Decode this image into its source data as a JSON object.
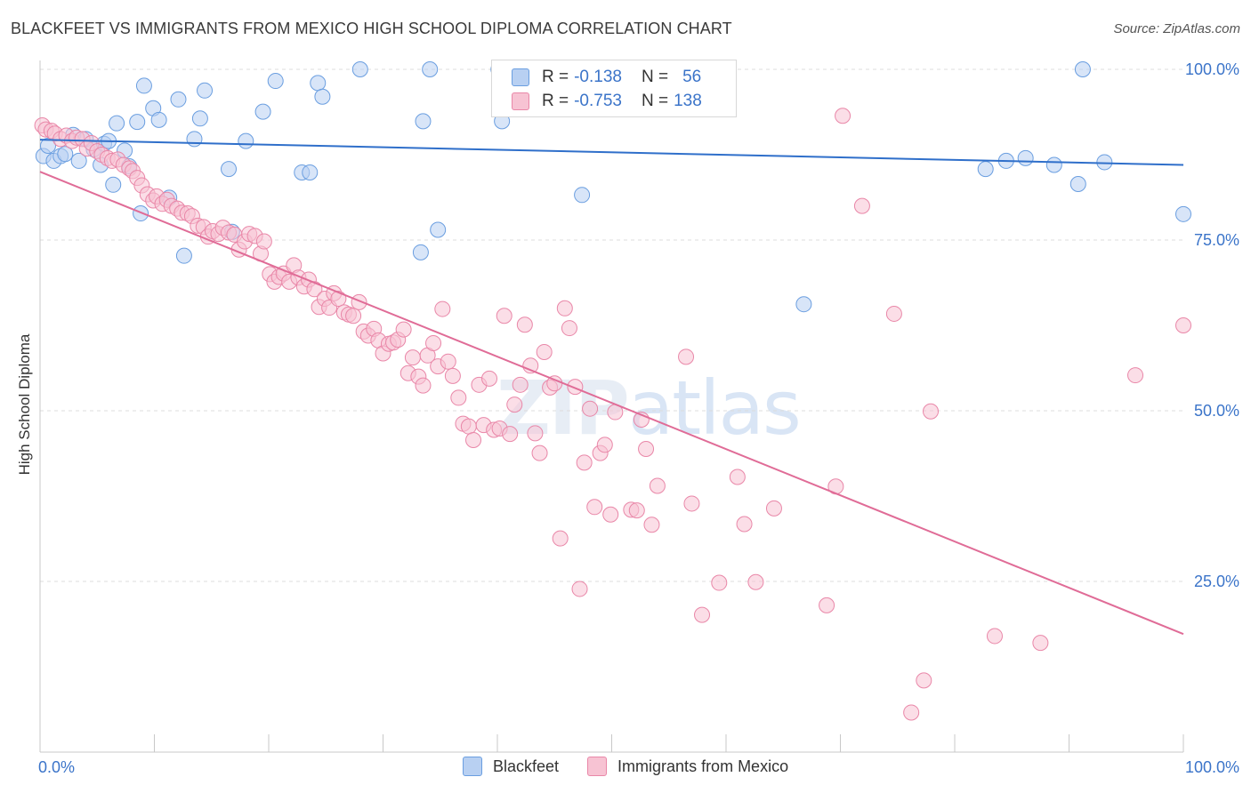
{
  "header": {
    "title": "BLACKFEET VS IMMIGRANTS FROM MEXICO HIGH SCHOOL DIPLOMA CORRELATION CHART",
    "source": "Source: ZipAtlas.com"
  },
  "watermark": {
    "zip": "ZIP",
    "atlas": "atlas"
  },
  "legend": {
    "rows": [
      {
        "r_label": "R =",
        "r_value": "-0.138",
        "n_label": "N =",
        "n_value": "56",
        "fill": "#b8d0f2",
        "stroke": "#6a9ee0"
      },
      {
        "r_label": "R =",
        "r_value": "-0.753",
        "n_label": "N =",
        "n_value": "138",
        "fill": "#f7c3d3",
        "stroke": "#e987a8"
      }
    ]
  },
  "bottom_legend": {
    "items": [
      {
        "label": "Blackfeet",
        "fill": "#b8d0f2",
        "stroke": "#6a9ee0"
      },
      {
        "label": "Immigrants from Mexico",
        "fill": "#f7c3d3",
        "stroke": "#e987a8"
      }
    ]
  },
  "chart_data": {
    "type": "scatter",
    "title": "BLACKFEET VS IMMIGRANTS FROM MEXICO HIGH SCHOOL DIPLOMA CORRELATION CHART",
    "xlabel": "",
    "ylabel": "High School Diploma",
    "xlim": [
      0,
      100
    ],
    "ylim": [
      0,
      100
    ],
    "x_tick_labels": [
      "0.0%",
      "100.0%"
    ],
    "y_ticks": [
      25,
      50,
      75,
      100
    ],
    "y_tick_labels": [
      "25.0%",
      "50.0%",
      "75.0%",
      "100.0%"
    ],
    "grid": true,
    "series": [
      {
        "name": "Blackfeet",
        "color": "#6a9ee0",
        "fill": "#b8d0f2",
        "line_color": "#2f6fca",
        "trend": [
          [
            0,
            89.7
          ],
          [
            100,
            86.0
          ]
        ],
        "points": [
          [
            0.3,
            87.3
          ],
          [
            0.7,
            88.8
          ],
          [
            1.2,
            86.6
          ],
          [
            1.8,
            87.3
          ],
          [
            2.2,
            87.6
          ],
          [
            2.9,
            90.4
          ],
          [
            3.4,
            86.6
          ],
          [
            4.0,
            89.8
          ],
          [
            4.7,
            88.3
          ],
          [
            5.3,
            86.0
          ],
          [
            5.6,
            89.1
          ],
          [
            6.0,
            89.5
          ],
          [
            6.4,
            83.1
          ],
          [
            6.7,
            92.1
          ],
          [
            7.4,
            88.1
          ],
          [
            7.8,
            85.8
          ],
          [
            8.5,
            92.3
          ],
          [
            8.8,
            78.9
          ],
          [
            9.1,
            97.6
          ],
          [
            9.9,
            94.3
          ],
          [
            10.4,
            92.6
          ],
          [
            11.3,
            81.2
          ],
          [
            12.1,
            95.6
          ],
          [
            12.6,
            72.7
          ],
          [
            13.5,
            89.8
          ],
          [
            14.0,
            92.8
          ],
          [
            14.4,
            96.9
          ],
          [
            16.5,
            85.4
          ],
          [
            16.8,
            76.2
          ],
          [
            18.0,
            89.5
          ],
          [
            19.5,
            93.8
          ],
          [
            20.6,
            98.3
          ],
          [
            22.9,
            84.9
          ],
          [
            23.6,
            84.9
          ],
          [
            24.3,
            98.0
          ],
          [
            24.7,
            96.0
          ],
          [
            28.0,
            100.0
          ],
          [
            33.3,
            73.2
          ],
          [
            33.5,
            92.4
          ],
          [
            34.1,
            100.0
          ],
          [
            34.8,
            76.5
          ],
          [
            40.1,
            100.0
          ],
          [
            40.4,
            92.4
          ],
          [
            46.2,
            100.0
          ],
          [
            47.1,
            94.6
          ],
          [
            47.2,
            100.0
          ],
          [
            47.4,
            81.6
          ],
          [
            66.8,
            65.6
          ],
          [
            82.7,
            85.4
          ],
          [
            84.5,
            86.6
          ],
          [
            86.2,
            87.0
          ],
          [
            88.7,
            86.0
          ],
          [
            90.8,
            83.2
          ],
          [
            91.2,
            100.0
          ],
          [
            93.1,
            86.4
          ],
          [
            100.0,
            78.8
          ]
        ]
      },
      {
        "name": "Immigrants from Mexico",
        "color": "#e987a8",
        "fill": "#f7c3d3",
        "line_color": "#e06c97",
        "trend": [
          [
            0,
            85.0
          ],
          [
            100,
            17.3
          ]
        ],
        "points": [
          [
            0.2,
            91.8
          ],
          [
            0.5,
            91.2
          ],
          [
            1.0,
            91.0
          ],
          [
            1.3,
            90.6
          ],
          [
            1.8,
            89.8
          ],
          [
            2.3,
            90.3
          ],
          [
            2.8,
            89.5
          ],
          [
            3.2,
            90.0
          ],
          [
            3.7,
            89.8
          ],
          [
            4.1,
            88.4
          ],
          [
            4.5,
            89.2
          ],
          [
            5.0,
            88.0
          ],
          [
            5.4,
            87.5
          ],
          [
            5.9,
            87.0
          ],
          [
            6.3,
            86.6
          ],
          [
            6.8,
            86.8
          ],
          [
            7.3,
            86.0
          ],
          [
            7.8,
            85.5
          ],
          [
            8.1,
            85.1
          ],
          [
            8.5,
            84.1
          ],
          [
            8.9,
            83.0
          ],
          [
            9.4,
            81.7
          ],
          [
            9.9,
            80.8
          ],
          [
            10.2,
            81.4
          ],
          [
            10.7,
            80.3
          ],
          [
            11.1,
            80.9
          ],
          [
            11.5,
            80.0
          ],
          [
            12.0,
            79.6
          ],
          [
            12.4,
            79.0
          ],
          [
            12.9,
            78.9
          ],
          [
            13.3,
            78.5
          ],
          [
            13.8,
            77.1
          ],
          [
            14.3,
            76.9
          ],
          [
            14.7,
            75.5
          ],
          [
            15.1,
            76.3
          ],
          [
            15.6,
            75.9
          ],
          [
            16.0,
            76.8
          ],
          [
            16.5,
            76.1
          ],
          [
            17.0,
            75.8
          ],
          [
            17.4,
            73.6
          ],
          [
            17.9,
            74.8
          ],
          [
            18.3,
            75.9
          ],
          [
            18.8,
            75.6
          ],
          [
            19.3,
            73.0
          ],
          [
            19.6,
            74.8
          ],
          [
            20.1,
            70.0
          ],
          [
            20.5,
            68.9
          ],
          [
            20.9,
            69.6
          ],
          [
            21.3,
            70.1
          ],
          [
            21.8,
            68.9
          ],
          [
            22.2,
            71.3
          ],
          [
            22.6,
            69.5
          ],
          [
            23.1,
            68.2
          ],
          [
            23.5,
            69.2
          ],
          [
            24.0,
            67.8
          ],
          [
            24.4,
            65.2
          ],
          [
            24.9,
            66.4
          ],
          [
            25.3,
            65.1
          ],
          [
            25.7,
            67.2
          ],
          [
            26.1,
            66.4
          ],
          [
            26.6,
            64.4
          ],
          [
            27.0,
            64.1
          ],
          [
            27.4,
            63.9
          ],
          [
            27.9,
            65.9
          ],
          [
            28.3,
            61.6
          ],
          [
            28.7,
            61.0
          ],
          [
            29.2,
            62.0
          ],
          [
            29.6,
            60.3
          ],
          [
            30.0,
            58.4
          ],
          [
            30.5,
            59.8
          ],
          [
            30.9,
            60.0
          ],
          [
            31.3,
            60.4
          ],
          [
            31.8,
            61.9
          ],
          [
            32.2,
            55.5
          ],
          [
            32.6,
            57.8
          ],
          [
            33.1,
            55.0
          ],
          [
            33.5,
            53.7
          ],
          [
            33.9,
            58.1
          ],
          [
            34.4,
            59.9
          ],
          [
            34.8,
            56.5
          ],
          [
            35.2,
            64.9
          ],
          [
            35.7,
            57.2
          ],
          [
            36.1,
            55.1
          ],
          [
            36.6,
            51.9
          ],
          [
            37.0,
            48.1
          ],
          [
            37.5,
            47.7
          ],
          [
            37.9,
            45.7
          ],
          [
            38.4,
            53.8
          ],
          [
            38.8,
            47.9
          ],
          [
            39.3,
            54.7
          ],
          [
            39.7,
            47.2
          ],
          [
            40.2,
            47.4
          ],
          [
            40.6,
            63.9
          ],
          [
            41.1,
            46.6
          ],
          [
            41.5,
            50.9
          ],
          [
            42.0,
            53.8
          ],
          [
            42.4,
            62.6
          ],
          [
            42.9,
            56.6
          ],
          [
            43.3,
            46.7
          ],
          [
            43.7,
            43.8
          ],
          [
            44.1,
            58.6
          ],
          [
            44.6,
            53.4
          ],
          [
            45.0,
            54.0
          ],
          [
            45.5,
            31.3
          ],
          [
            45.9,
            65.0
          ],
          [
            46.3,
            62.1
          ],
          [
            46.8,
            53.5
          ],
          [
            47.2,
            23.9
          ],
          [
            47.6,
            42.4
          ],
          [
            48.1,
            50.3
          ],
          [
            48.5,
            35.9
          ],
          [
            49.0,
            43.8
          ],
          [
            49.4,
            45.0
          ],
          [
            49.9,
            34.8
          ],
          [
            50.3,
            49.8
          ],
          [
            51.7,
            35.5
          ],
          [
            52.2,
            35.4
          ],
          [
            52.6,
            48.7
          ],
          [
            53.0,
            44.4
          ],
          [
            53.5,
            33.3
          ],
          [
            54.0,
            39.0
          ],
          [
            56.5,
            57.9
          ],
          [
            57.0,
            36.4
          ],
          [
            57.9,
            20.1
          ],
          [
            59.4,
            24.8
          ],
          [
            61.0,
            40.3
          ],
          [
            61.6,
            33.4
          ],
          [
            62.6,
            24.9
          ],
          [
            64.2,
            35.7
          ],
          [
            68.8,
            21.5
          ],
          [
            69.6,
            38.9
          ],
          [
            70.2,
            93.2
          ],
          [
            71.9,
            80.0
          ],
          [
            74.7,
            64.2
          ],
          [
            76.2,
            5.8
          ],
          [
            77.3,
            10.5
          ],
          [
            77.9,
            49.9
          ],
          [
            83.5,
            17.0
          ],
          [
            87.5,
            16.0
          ],
          [
            95.8,
            55.2
          ],
          [
            100.0,
            62.5
          ]
        ]
      }
    ]
  }
}
